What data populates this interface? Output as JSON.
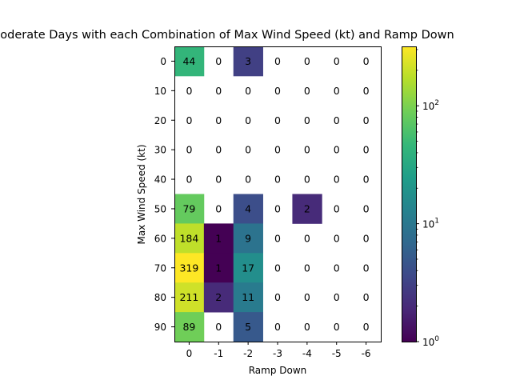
{
  "chart_data": {
    "type": "heatmap",
    "title": "Number of Moderate Days with each Combination of Max Wind Speed (kt) and Ramp Down",
    "xlabel": "Ramp Down",
    "ylabel": "Max Wind Speed (kt)",
    "x_categories": [
      "0",
      "-1",
      "-2",
      "-3",
      "-4",
      "-5",
      "-6"
    ],
    "y_categories": [
      "0",
      "10",
      "20",
      "30",
      "40",
      "50",
      "60",
      "70",
      "80",
      "90"
    ],
    "values": [
      [
        44,
        0,
        3,
        0,
        0,
        0,
        0
      ],
      [
        0,
        0,
        0,
        0,
        0,
        0,
        0
      ],
      [
        0,
        0,
        0,
        0,
        0,
        0,
        0
      ],
      [
        0,
        0,
        0,
        0,
        0,
        0,
        0
      ],
      [
        0,
        0,
        0,
        0,
        0,
        0,
        0
      ],
      [
        79,
        0,
        4,
        0,
        2,
        0,
        0
      ],
      [
        184,
        1,
        9,
        0,
        0,
        0,
        0
      ],
      [
        319,
        1,
        17,
        0,
        0,
        0,
        0
      ],
      [
        211,
        2,
        11,
        0,
        0,
        0,
        0
      ],
      [
        89,
        0,
        5,
        0,
        0,
        0,
        0
      ]
    ],
    "zero_cells": "blank (white)",
    "colormap": "viridis",
    "color_scale": "log",
    "colorbar": {
      "range": [
        1,
        319
      ],
      "tick_labels": [
        {
          "base": "10",
          "exp": "0",
          "value": 1
        },
        {
          "base": "10",
          "exp": "1",
          "value": 10
        },
        {
          "base": "10",
          "exp": "2",
          "value": 100
        }
      ]
    }
  }
}
